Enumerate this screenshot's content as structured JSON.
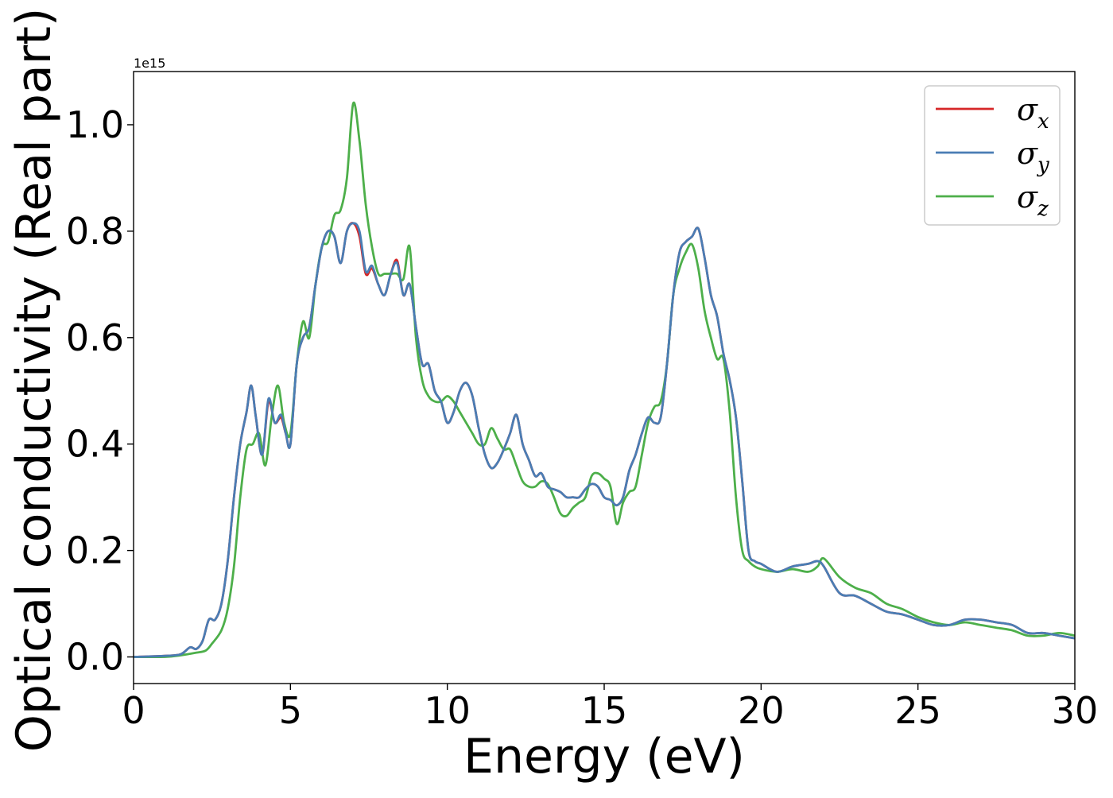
{
  "chart_data": {
    "type": "line",
    "title": "",
    "xlabel": "Energy (eV)",
    "ylabel": "Optical conductivity (Real part)",
    "y_offset_text": "1e15",
    "y_multiplier": 1000000000000000.0,
    "xlim": [
      0,
      30
    ],
    "ylim": [
      -0.05,
      1.1
    ],
    "xticks": [
      0,
      5,
      10,
      15,
      20,
      25,
      30
    ],
    "xtick_labels": [
      "0",
      "5",
      "10",
      "15",
      "20",
      "25",
      "30"
    ],
    "yticks": [
      0.0,
      0.2,
      0.4,
      0.6,
      0.8,
      1.0
    ],
    "ytick_labels": [
      "0.0",
      "0.2",
      "0.4",
      "0.6",
      "0.8",
      "1.0"
    ],
    "grid": false,
    "legend_position": "top-right",
    "series": [
      {
        "name": "σx",
        "legend_symbol": "σ",
        "legend_subscript": "x",
        "color": "#d62728",
        "x": [
          0,
          1,
          1.5,
          1.8,
          2.0,
          2.2,
          2.4,
          2.6,
          2.8,
          3.0,
          3.2,
          3.4,
          3.6,
          3.75,
          3.9,
          4.1,
          4.3,
          4.5,
          4.7,
          4.85,
          5.0,
          5.2,
          5.4,
          5.6,
          5.8,
          6.0,
          6.2,
          6.4,
          6.6,
          6.8,
          7.0,
          7.2,
          7.4,
          7.6,
          7.8,
          8.0,
          8.2,
          8.4,
          8.6,
          8.8,
          9.0,
          9.2,
          9.4,
          9.6,
          9.8,
          10.0,
          10.2,
          10.4,
          10.6,
          10.8,
          11.0,
          11.2,
          11.4,
          11.6,
          11.8,
          12.0,
          12.2,
          12.4,
          12.6,
          12.8,
          13.0,
          13.2,
          13.4,
          13.6,
          13.8,
          14.0,
          14.2,
          14.4,
          14.6,
          14.8,
          15.0,
          15.2,
          15.4,
          15.6,
          15.8,
          16.0,
          16.2,
          16.4,
          16.6,
          16.8,
          17.0,
          17.2,
          17.4,
          17.6,
          17.8,
          18.0,
          18.2,
          18.4,
          18.6,
          18.8,
          19.0,
          19.2,
          19.4,
          19.6,
          19.8,
          20.0,
          20.5,
          21.0,
          21.5,
          21.8,
          22.0,
          22.5,
          23.0,
          23.5,
          24.0,
          24.5,
          25.0,
          25.5,
          26.0,
          26.5,
          27.0,
          27.5,
          28.0,
          28.5,
          29.0,
          29.5,
          30.0
        ],
        "y": [
          0.0,
          0.002,
          0.005,
          0.018,
          0.015,
          0.03,
          0.07,
          0.07,
          0.1,
          0.18,
          0.3,
          0.4,
          0.46,
          0.51,
          0.45,
          0.38,
          0.48,
          0.44,
          0.45,
          0.42,
          0.4,
          0.55,
          0.6,
          0.62,
          0.7,
          0.77,
          0.8,
          0.79,
          0.74,
          0.8,
          0.815,
          0.79,
          0.72,
          0.73,
          0.7,
          0.68,
          0.72,
          0.745,
          0.68,
          0.7,
          0.62,
          0.55,
          0.55,
          0.5,
          0.48,
          0.44,
          0.46,
          0.5,
          0.515,
          0.49,
          0.43,
          0.38,
          0.355,
          0.365,
          0.39,
          0.42,
          0.455,
          0.4,
          0.37,
          0.34,
          0.345,
          0.32,
          0.315,
          0.31,
          0.3,
          0.3,
          0.3,
          0.315,
          0.325,
          0.32,
          0.3,
          0.295,
          0.285,
          0.3,
          0.35,
          0.38,
          0.42,
          0.45,
          0.44,
          0.45,
          0.55,
          0.68,
          0.76,
          0.78,
          0.79,
          0.805,
          0.75,
          0.68,
          0.64,
          0.57,
          0.52,
          0.45,
          0.33,
          0.2,
          0.18,
          0.175,
          0.16,
          0.17,
          0.175,
          0.18,
          0.17,
          0.12,
          0.115,
          0.1,
          0.085,
          0.08,
          0.07,
          0.06,
          0.06,
          0.07,
          0.07,
          0.065,
          0.06,
          0.045,
          0.045,
          0.04,
          0.035
        ]
      },
      {
        "name": "σy",
        "legend_symbol": "σ",
        "legend_subscript": "y",
        "color": "#4a7db4",
        "x": [
          0,
          1,
          1.5,
          1.8,
          2.0,
          2.2,
          2.4,
          2.6,
          2.8,
          3.0,
          3.2,
          3.4,
          3.6,
          3.75,
          3.9,
          4.1,
          4.3,
          4.5,
          4.7,
          4.85,
          5.0,
          5.2,
          5.4,
          5.6,
          5.8,
          6.0,
          6.2,
          6.4,
          6.6,
          6.8,
          7.0,
          7.2,
          7.4,
          7.6,
          7.8,
          8.0,
          8.2,
          8.4,
          8.6,
          8.8,
          9.0,
          9.2,
          9.4,
          9.6,
          9.8,
          10.0,
          10.2,
          10.4,
          10.6,
          10.8,
          11.0,
          11.2,
          11.4,
          11.6,
          11.8,
          12.0,
          12.2,
          12.4,
          12.6,
          12.8,
          13.0,
          13.2,
          13.4,
          13.6,
          13.8,
          14.0,
          14.2,
          14.4,
          14.6,
          14.8,
          15.0,
          15.2,
          15.4,
          15.6,
          15.8,
          16.0,
          16.2,
          16.4,
          16.6,
          16.8,
          17.0,
          17.2,
          17.4,
          17.6,
          17.8,
          18.0,
          18.2,
          18.4,
          18.6,
          18.8,
          19.0,
          19.2,
          19.4,
          19.6,
          19.8,
          20.0,
          20.5,
          21.0,
          21.5,
          21.8,
          22.0,
          22.5,
          23.0,
          23.5,
          24.0,
          24.5,
          25.0,
          25.5,
          26.0,
          26.5,
          27.0,
          27.5,
          28.0,
          28.5,
          29.0,
          29.5,
          30.0
        ],
        "y": [
          0.0,
          0.002,
          0.005,
          0.018,
          0.015,
          0.03,
          0.07,
          0.07,
          0.1,
          0.18,
          0.3,
          0.4,
          0.46,
          0.51,
          0.45,
          0.38,
          0.485,
          0.44,
          0.455,
          0.42,
          0.4,
          0.55,
          0.6,
          0.62,
          0.7,
          0.77,
          0.8,
          0.79,
          0.74,
          0.8,
          0.815,
          0.8,
          0.725,
          0.735,
          0.7,
          0.68,
          0.72,
          0.74,
          0.68,
          0.7,
          0.62,
          0.55,
          0.55,
          0.5,
          0.48,
          0.44,
          0.46,
          0.5,
          0.515,
          0.49,
          0.43,
          0.38,
          0.355,
          0.365,
          0.39,
          0.42,
          0.455,
          0.4,
          0.37,
          0.34,
          0.345,
          0.32,
          0.315,
          0.31,
          0.3,
          0.3,
          0.3,
          0.315,
          0.325,
          0.32,
          0.3,
          0.295,
          0.285,
          0.3,
          0.35,
          0.38,
          0.42,
          0.45,
          0.44,
          0.45,
          0.55,
          0.68,
          0.76,
          0.78,
          0.79,
          0.805,
          0.75,
          0.68,
          0.64,
          0.57,
          0.52,
          0.45,
          0.33,
          0.2,
          0.18,
          0.175,
          0.16,
          0.17,
          0.175,
          0.18,
          0.17,
          0.12,
          0.115,
          0.1,
          0.085,
          0.08,
          0.07,
          0.06,
          0.06,
          0.07,
          0.07,
          0.065,
          0.06,
          0.045,
          0.045,
          0.04,
          0.035
        ]
      },
      {
        "name": "σz",
        "legend_symbol": "σ",
        "legend_subscript": "z",
        "color": "#4daf4a",
        "x": [
          0,
          1,
          1.5,
          2.0,
          2.3,
          2.5,
          2.8,
          3.0,
          3.2,
          3.4,
          3.6,
          3.8,
          4.0,
          4.2,
          4.4,
          4.6,
          4.8,
          5.0,
          5.2,
          5.4,
          5.6,
          5.8,
          6.0,
          6.2,
          6.4,
          6.6,
          6.8,
          7.0,
          7.2,
          7.4,
          7.6,
          7.8,
          8.0,
          8.2,
          8.4,
          8.6,
          8.8,
          9.0,
          9.2,
          9.4,
          9.6,
          9.8,
          10.0,
          10.2,
          10.4,
          10.6,
          10.8,
          11.0,
          11.2,
          11.4,
          11.6,
          11.8,
          12.0,
          12.2,
          12.4,
          12.6,
          12.8,
          13.0,
          13.2,
          13.4,
          13.6,
          13.8,
          14.0,
          14.2,
          14.4,
          14.6,
          14.8,
          15.0,
          15.2,
          15.4,
          15.6,
          15.8,
          16.0,
          16.2,
          16.4,
          16.6,
          16.8,
          17.0,
          17.2,
          17.4,
          17.6,
          17.8,
          18.0,
          18.2,
          18.4,
          18.6,
          18.8,
          19.0,
          19.2,
          19.4,
          19.6,
          19.8,
          20.0,
          20.5,
          21.0,
          21.5,
          21.8,
          22.0,
          22.5,
          23.0,
          23.5,
          24.0,
          24.5,
          25.0,
          25.5,
          26.0,
          26.5,
          27.0,
          27.5,
          28.0,
          28.5,
          29.0,
          29.5,
          30.0
        ],
        "y": [
          0.0,
          0.0,
          0.003,
          0.008,
          0.012,
          0.025,
          0.05,
          0.09,
          0.17,
          0.3,
          0.39,
          0.4,
          0.42,
          0.36,
          0.45,
          0.51,
          0.44,
          0.42,
          0.55,
          0.63,
          0.6,
          0.7,
          0.77,
          0.78,
          0.83,
          0.84,
          0.9,
          1.04,
          0.97,
          0.85,
          0.77,
          0.72,
          0.72,
          0.72,
          0.72,
          0.71,
          0.77,
          0.6,
          0.52,
          0.49,
          0.48,
          0.48,
          0.49,
          0.48,
          0.46,
          0.44,
          0.42,
          0.4,
          0.4,
          0.43,
          0.41,
          0.39,
          0.39,
          0.36,
          0.33,
          0.32,
          0.32,
          0.33,
          0.325,
          0.3,
          0.27,
          0.265,
          0.28,
          0.29,
          0.3,
          0.34,
          0.345,
          0.335,
          0.32,
          0.25,
          0.29,
          0.31,
          0.32,
          0.38,
          0.44,
          0.47,
          0.48,
          0.55,
          0.68,
          0.73,
          0.76,
          0.775,
          0.73,
          0.65,
          0.6,
          0.56,
          0.56,
          0.46,
          0.3,
          0.2,
          0.18,
          0.17,
          0.165,
          0.16,
          0.165,
          0.16,
          0.17,
          0.185,
          0.15,
          0.13,
          0.12,
          0.1,
          0.09,
          0.075,
          0.065,
          0.06,
          0.065,
          0.06,
          0.055,
          0.05,
          0.04,
          0.04,
          0.045,
          0.04
        ]
      }
    ]
  }
}
